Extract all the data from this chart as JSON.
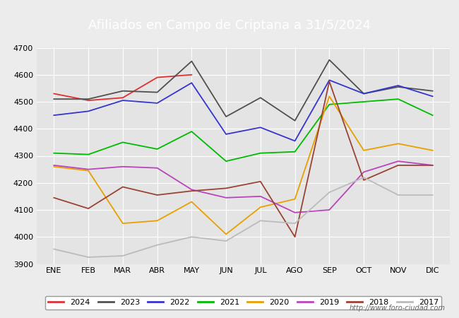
{
  "title": "Afiliados en Campo de Criptana a 31/5/2024",
  "ylim": [
    3900,
    4700
  ],
  "months": [
    "ENE",
    "FEB",
    "MAR",
    "ABR",
    "MAY",
    "JUN",
    "JUL",
    "AGO",
    "SEP",
    "OCT",
    "NOV",
    "DIC"
  ],
  "series": {
    "2024": {
      "color": "#e03030",
      "data": [
        4530,
        4505,
        4515,
        4590,
        4600,
        null,
        null,
        null,
        null,
        null,
        null,
        null
      ]
    },
    "2023": {
      "color": "#505050",
      "data": [
        4510,
        4510,
        4540,
        4535,
        4650,
        4445,
        4515,
        4430,
        4655,
        4530,
        4555,
        4540
      ]
    },
    "2022": {
      "color": "#3535cc",
      "data": [
        4450,
        4465,
        4505,
        4495,
        4570,
        4380,
        4405,
        4355,
        4580,
        4530,
        4560,
        4520
      ]
    },
    "2021": {
      "color": "#00bb00",
      "data": [
        4310,
        4305,
        4350,
        4325,
        4390,
        4280,
        4310,
        4315,
        4490,
        4500,
        4510,
        4450
      ]
    },
    "2020": {
      "color": "#e8a000",
      "data": [
        4260,
        4245,
        4050,
        4060,
        4130,
        4010,
        4110,
        4140,
        4520,
        4320,
        4345,
        4320
      ]
    },
    "2019": {
      "color": "#bb44bb",
      "data": [
        4265,
        4250,
        4260,
        4255,
        4175,
        4145,
        4150,
        4090,
        4100,
        4240,
        4280,
        4265
      ]
    },
    "2018": {
      "color": "#994433",
      "data": [
        4145,
        4105,
        4185,
        4155,
        4170,
        4180,
        4205,
        4000,
        4575,
        4210,
        4265,
        4265
      ]
    },
    "2017": {
      "color": "#bbbbbb",
      "data": [
        3955,
        3925,
        3930,
        3970,
        4000,
        3985,
        4060,
        4050,
        4165,
        4220,
        4155,
        4155
      ]
    }
  },
  "background_color": "#ececec",
  "plot_bg_color": "#e4e4e4",
  "grid_color": "#ffffff",
  "title_bg_color": "#4472c4",
  "title_text_color": "#ffffff",
  "watermark": "http://www.foro-ciudad.com"
}
